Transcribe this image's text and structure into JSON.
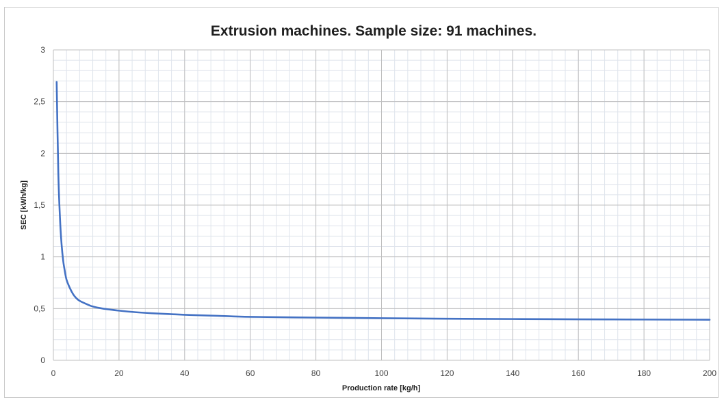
{
  "chart_data": {
    "type": "line",
    "title": "Extrusion machines. Sample size: 91 machines.",
    "xlabel": "Production rate [kg/h]",
    "ylabel": "SEC [kWh/kg]",
    "xlim": [
      0,
      200
    ],
    "ylim": [
      0,
      3
    ],
    "x_ticks": [
      0,
      20,
      40,
      60,
      80,
      100,
      120,
      140,
      160,
      180,
      200
    ],
    "x_tick_labels": [
      "0",
      "20",
      "40",
      "60",
      "80",
      "100",
      "120",
      "140",
      "160",
      "180",
      "200"
    ],
    "y_ticks": [
      0,
      0.5,
      1,
      1.5,
      2,
      2.5,
      3
    ],
    "y_tick_labels": [
      "0",
      "0,5",
      "1",
      "1,5",
      "2",
      "2,5",
      "3"
    ],
    "grid": true,
    "legend": "none",
    "series": [
      {
        "color": "#4472c4",
        "x": [
          1,
          1.5,
          2,
          2.5,
          3,
          3.5,
          4,
          5,
          6,
          7,
          8,
          10,
          12,
          15,
          20,
          25,
          30,
          40,
          50,
          60,
          80,
          100,
          120,
          140,
          160,
          180,
          200
        ],
        "y": [
          2.69,
          1.82,
          1.38,
          1.12,
          0.96,
          0.86,
          0.78,
          0.7,
          0.64,
          0.6,
          0.575,
          0.545,
          0.52,
          0.5,
          0.48,
          0.465,
          0.455,
          0.44,
          0.43,
          0.42,
          0.413,
          0.407,
          0.402,
          0.399,
          0.396,
          0.394,
          0.392
        ]
      }
    ]
  },
  "colors": {
    "major_grid": "#bfbfbf",
    "minor_grid": "#dfe4ec",
    "line": "#4472c4"
  }
}
